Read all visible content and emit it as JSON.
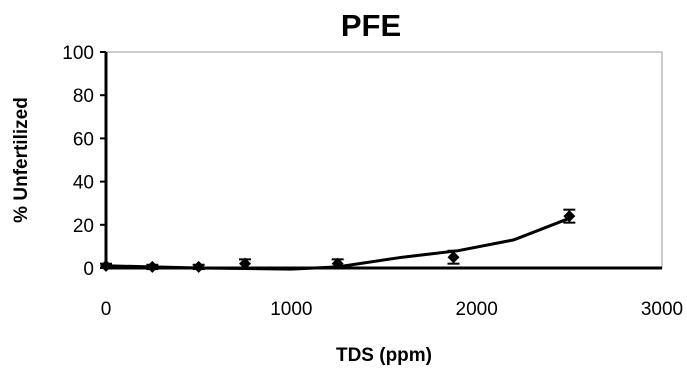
{
  "chart_data": {
    "type": "scatter",
    "title": "PFE",
    "xlabel": "TDS (ppm)",
    "ylabel": "% Unfertilized",
    "xlim": [
      0,
      3000
    ],
    "ylim": [
      0,
      100
    ],
    "x_ticks": [
      "0",
      "1000",
      "2000",
      "3000"
    ],
    "y_ticks": [
      "0",
      "20",
      "40",
      "60",
      "80",
      "100"
    ],
    "grid": false,
    "legend": "none",
    "series": [
      {
        "points": [
          {
            "x": 0,
            "y": 1,
            "err": 1
          },
          {
            "x": 250,
            "y": 0.5,
            "err": 1
          },
          {
            "x": 500,
            "y": 0.5,
            "err": 1
          },
          {
            "x": 750,
            "y": 2,
            "err": 2
          },
          {
            "x": 1250,
            "y": 2,
            "err": 2
          },
          {
            "x": 1875,
            "y": 5,
            "err": 3
          },
          {
            "x": 2500,
            "y": 24,
            "err": 3
          }
        ],
        "trendline": [
          {
            "x": 0,
            "y": 1
          },
          {
            "x": 500,
            "y": 0
          },
          {
            "x": 1000,
            "y": -0.5
          },
          {
            "x": 1250,
            "y": 0.5
          },
          {
            "x": 1600,
            "y": 5
          },
          {
            "x": 1900,
            "y": 8
          },
          {
            "x": 2200,
            "y": 13
          },
          {
            "x": 2500,
            "y": 23
          }
        ]
      }
    ],
    "colors": {
      "marker": "#000000",
      "line": "#000000",
      "frame": "#9a9a9a"
    }
  }
}
